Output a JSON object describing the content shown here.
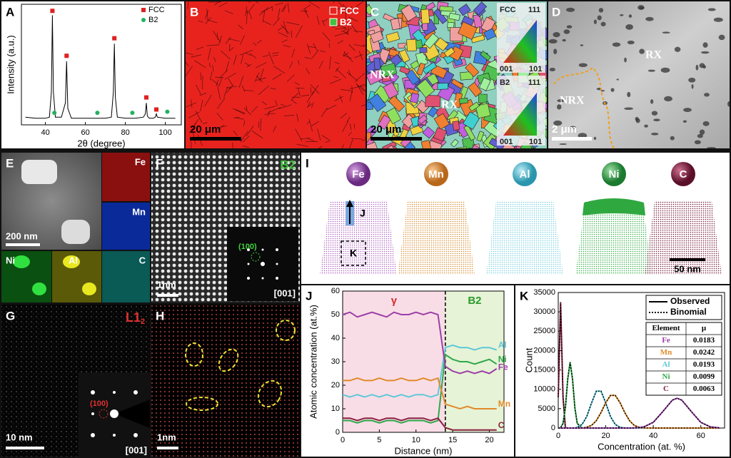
{
  "panels": {
    "letters": [
      "A",
      "B",
      "C",
      "D",
      "E",
      "F",
      "G",
      "H",
      "I",
      "J",
      "K"
    ],
    "B": {
      "legend": [
        "FCC",
        "B2"
      ],
      "scale": "20 μm"
    },
    "C": {
      "labels": [
        "NRX",
        "RX"
      ],
      "scale": "20 μm",
      "keys": [
        {
          "phase": "FCC",
          "top": "111",
          "left": "001",
          "right": "101"
        },
        {
          "phase": "B2",
          "top": "111",
          "left": "001",
          "right": "101"
        }
      ]
    },
    "D": {
      "labels": [
        "RX",
        "NRX"
      ],
      "scale": "2 μm"
    },
    "E": {
      "scale": "200 nm",
      "maps": [
        "Fe",
        "Mn",
        "Ni",
        "Al",
        "C"
      ]
    },
    "F": {
      "phase": "B2",
      "spot": "(100)",
      "zone": "[001]",
      "scale": "1nm"
    },
    "G": {
      "phase": "L1",
      "phase_sub": "2",
      "spot": "(100)",
      "zone": "[001]",
      "scale": "10 nm"
    },
    "H": {
      "scale": "1nm"
    },
    "I": {
      "elements": [
        "Fe",
        "Mn",
        "Al",
        "Ni",
        "C"
      ],
      "markers": [
        "J",
        "K"
      ],
      "scale": "50 nm"
    }
  },
  "chart_data": [
    {
      "type": "line",
      "xlabel": "2θ (degree)",
      "ylabel": "Intensity (a.u.)",
      "xlim": [
        28,
        108
      ],
      "xticks": [
        40,
        60,
        80,
        100
      ],
      "ylim": [
        0,
        1.1
      ],
      "color": "#000000",
      "x": [
        30,
        35,
        40,
        42,
        43,
        43.5,
        44,
        45,
        48,
        50,
        50.6,
        51.2,
        53,
        60,
        65,
        70,
        73,
        74,
        74.5,
        75,
        76,
        80,
        85,
        89,
        90,
        90.5,
        91,
        92,
        94,
        95,
        95.5,
        96,
        100,
        105
      ],
      "values": [
        0.07,
        0.06,
        0.06,
        0.07,
        0.3,
        1.0,
        0.3,
        0.07,
        0.07,
        0.2,
        0.58,
        0.15,
        0.06,
        0.06,
        0.06,
        0.06,
        0.07,
        0.3,
        0.74,
        0.25,
        0.07,
        0.06,
        0.06,
        0.07,
        0.1,
        0.2,
        0.08,
        0.06,
        0.06,
        0.07,
        0.1,
        0.07,
        0.06,
        0.06
      ],
      "markers": [
        {
          "name": "FCC",
          "color": "#e02020",
          "shape": "square",
          "x": [
            43.5,
            50.6,
            74.5,
            90.5,
            95.5
          ],
          "values": [
            1.04,
            0.63,
            0.79,
            0.25,
            0.14
          ]
        },
        {
          "name": "B2",
          "color": "#22b060",
          "shape": "circle",
          "x": [
            44.5,
            66,
            83.5,
            101
          ],
          "values": [
            0.11,
            0.11,
            0.11,
            0.12
          ]
        }
      ]
    },
    {
      "type": "line",
      "xlabel": "Distance (nm)",
      "ylabel": "Atomic concentration (at.%)",
      "xlim": [
        0,
        22
      ],
      "xticks": [
        0,
        5,
        10,
        15,
        20
      ],
      "ylim": [
        0,
        60
      ],
      "yticks": [
        0,
        10,
        20,
        30,
        40,
        50,
        60
      ],
      "regions": [
        {
          "label": "γ",
          "x": [
            0,
            14
          ],
          "color": "#f9dde6",
          "label_color": "#d03030"
        },
        {
          "label": "B2",
          "x": [
            14,
            22
          ],
          "color": "#e6f3d6",
          "label_color": "#2a9a2a"
        }
      ],
      "boundary": 14,
      "end_labels": true,
      "x": [
        0,
        1,
        2,
        3,
        4,
        5,
        6,
        7,
        8,
        9,
        10,
        11,
        12,
        13,
        14,
        15,
        16,
        17,
        18,
        19,
        20,
        21
      ],
      "series": [
        {
          "name": "Al",
          "color": "#5ec8d8",
          "values": [
            16,
            15,
            16,
            15,
            16,
            15,
            16,
            15,
            16,
            15,
            16,
            16,
            15,
            16,
            36,
            37,
            36,
            36,
            35,
            36,
            36,
            35
          ]
        },
        {
          "name": "Ni",
          "color": "#2fa84a",
          "values": [
            5,
            5,
            4,
            5,
            5,
            4,
            5,
            5,
            4,
            5,
            5,
            5,
            4,
            5,
            33,
            31,
            30,
            30,
            29,
            30,
            31,
            29
          ]
        },
        {
          "name": "Fe",
          "color": "#9b3fa8",
          "values": [
            50,
            51,
            49,
            50,
            51,
            50,
            49,
            51,
            50,
            50,
            51,
            50,
            51,
            50,
            28,
            26,
            25,
            26,
            25,
            26,
            25,
            27
          ]
        },
        {
          "name": "Mn",
          "color": "#e08a2a",
          "values": [
            22,
            22,
            23,
            22,
            22,
            23,
            22,
            22,
            23,
            22,
            22,
            23,
            22,
            23,
            12,
            11,
            10,
            11,
            10,
            10,
            10,
            10
          ]
        },
        {
          "name": "C",
          "color": "#8a2040",
          "values": [
            6,
            6,
            5,
            6,
            6,
            5,
            6,
            6,
            5,
            6,
            6,
            6,
            5,
            6,
            2,
            1,
            1,
            1,
            1,
            1,
            1,
            1
          ]
        }
      ]
    },
    {
      "type": "line",
      "xlabel": "Concentration (at. %)",
      "ylabel": "Count",
      "xlim": [
        0,
        70
      ],
      "xticks": [
        0,
        20,
        40,
        60
      ],
      "ylim": [
        0,
        35000
      ],
      "yticks": [
        0,
        5000,
        10000,
        15000,
        20000,
        25000,
        30000,
        35000
      ],
      "legend": [
        {
          "label": "Observed",
          "style": "solid"
        },
        {
          "label": "Binomial",
          "style": "dotted"
        }
      ],
      "x": [
        0,
        1,
        2,
        3,
        4,
        5,
        6,
        7,
        8,
        10,
        12,
        14,
        16,
        18,
        20,
        22,
        24,
        26,
        28,
        30,
        32,
        34,
        36,
        40,
        44,
        48,
        50,
        52,
        56,
        60,
        64,
        68
      ],
      "series": [
        {
          "name": "C",
          "color": "#8a2040",
          "values": [
            8000,
            32500,
            8000,
            100,
            0,
            0,
            0,
            0,
            0,
            0,
            0,
            0,
            0,
            0,
            0,
            0,
            0,
            0,
            0,
            0,
            0,
            0,
            0,
            0,
            0,
            0,
            0,
            0,
            0,
            0,
            0,
            0
          ]
        },
        {
          "name": "Ni",
          "color": "#2fa84a",
          "values": [
            0,
            100,
            1200,
            5200,
            12650,
            17000,
            12650,
            5200,
            1200,
            10,
            0,
            0,
            0,
            0,
            0,
            0,
            0,
            0,
            0,
            0,
            0,
            0,
            0,
            0,
            0,
            0,
            0,
            0,
            0,
            0,
            0,
            0
          ]
        },
        {
          "name": "Al",
          "color": "#5ec8d8",
          "values": [
            0,
            0,
            0,
            0,
            0,
            0,
            0,
            0,
            190,
            920,
            2950,
            6450,
            9520,
            9520,
            6450,
            2950,
            920,
            190,
            30,
            0,
            0,
            0,
            0,
            0,
            0,
            0,
            0,
            0,
            0,
            0,
            0,
            0
          ]
        },
        {
          "name": "Mn",
          "color": "#e08a2a",
          "values": [
            0,
            0,
            0,
            0,
            0,
            0,
            0,
            0,
            0,
            0,
            200,
            690,
            1880,
            3990,
            6570,
            8430,
            8430,
            6570,
            3990,
            1880,
            690,
            200,
            40,
            0,
            0,
            0,
            0,
            0,
            0,
            0,
            0,
            0
          ]
        },
        {
          "name": "Fe",
          "color": "#9b3fa8",
          "values": [
            0,
            0,
            0,
            0,
            0,
            0,
            0,
            0,
            0,
            0,
            0,
            0,
            0,
            0,
            0,
            0,
            0,
            0,
            0,
            0,
            36,
            110,
            300,
            1470,
            4250,
            7210,
            7700,
            7210,
            4250,
            1470,
            300,
            36
          ]
        }
      ],
      "table": {
        "header": [
          "Element",
          "μ"
        ],
        "rows": [
          [
            "Fe",
            0.0183
          ],
          [
            "Mn",
            0.0242
          ],
          [
            "Al",
            0.0193
          ],
          [
            "Ni",
            0.0099
          ],
          [
            "C",
            0.0063
          ]
        ]
      }
    }
  ]
}
